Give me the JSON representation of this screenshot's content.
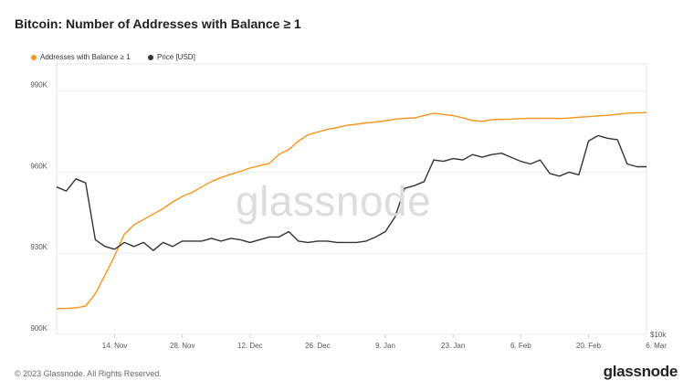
{
  "title": "Bitcoin: Number of Addresses with Balance ≥ 1",
  "footer": {
    "copyright": "© 2023 Glassnode. All Rights Reserved.",
    "logo": "glassnode"
  },
  "watermark": "glassnode",
  "colors": {
    "series_addresses": "#f7931a",
    "series_price": "#333333",
    "grid": "#eeeeee"
  },
  "chart_data": {
    "type": "line",
    "x_ticks": [
      "14. Nov",
      "28. Nov",
      "12. Dec",
      "26. Dec",
      "9. Jan",
      "23. Jan",
      "6. Feb",
      "20. Feb",
      "6. Mar"
    ],
    "y_left": {
      "ticks": [
        "900K",
        "930K",
        "960K",
        "990K"
      ],
      "tick_values": [
        900000,
        930000,
        960000,
        990000
      ],
      "range": [
        900000,
        1000000
      ]
    },
    "y_right": {
      "label": "$10k",
      "range": [
        10000,
        30000
      ]
    },
    "legend": {
      "position": "top-left"
    },
    "series": [
      {
        "name": "Addresses with Balance ≥ 1",
        "axis": "left",
        "x": [
          0,
          2,
          4,
          6,
          8,
          10,
          12,
          14,
          16,
          18,
          20,
          22,
          24,
          26,
          28,
          30,
          32,
          34,
          36,
          38,
          40,
          42,
          44,
          46,
          48,
          50,
          52,
          54,
          56,
          58,
          60,
          62,
          64,
          66,
          68,
          70,
          72,
          74,
          76,
          78,
          80,
          82,
          84,
          86,
          88,
          90,
          92,
          94,
          96,
          98,
          100,
          102,
          104,
          106,
          108,
          110,
          112,
          114,
          116,
          118,
          120,
          122
        ],
        "values": [
          909500,
          909600,
          909800,
          910500,
          915000,
          922000,
          929000,
          937000,
          940500,
          942500,
          944500,
          946500,
          949000,
          951000,
          952500,
          954500,
          956500,
          958000,
          959200,
          960300,
          961500,
          962400,
          963200,
          966600,
          968300,
          971500,
          973800,
          974800,
          975800,
          976500,
          977300,
          977700,
          978200,
          978500,
          979000,
          979600,
          979900,
          980000,
          980900,
          981800,
          981300,
          980900,
          980100,
          979100,
          978800,
          979400,
          979500,
          979600,
          979800,
          979900,
          979900,
          979900,
          979800,
          980000,
          980300,
          980500,
          980800,
          981000,
          981400,
          981800,
          981900,
          982000
        ]
      },
      {
        "name": "Price [USD]",
        "axis": "right",
        "x": [
          0,
          2,
          4,
          6,
          8,
          10,
          12,
          14,
          16,
          18,
          20,
          22,
          24,
          26,
          28,
          30,
          32,
          34,
          36,
          38,
          40,
          42,
          44,
          46,
          48,
          50,
          52,
          54,
          56,
          58,
          60,
          62,
          64,
          66,
          68,
          70,
          72,
          74,
          76,
          78,
          80,
          82,
          84,
          86,
          88,
          90,
          92,
          94,
          96,
          98,
          100,
          102,
          104,
          106,
          108,
          110,
          112,
          114,
          116,
          118,
          120,
          122
        ],
        "values": [
          20900,
          20600,
          21500,
          21200,
          17000,
          16500,
          16300,
          16800,
          16500,
          16800,
          16200,
          16800,
          16500,
          16900,
          16900,
          16900,
          17100,
          16900,
          17100,
          17000,
          16800,
          17000,
          17200,
          17200,
          17600,
          16900,
          16800,
          16900,
          16900,
          16800,
          16800,
          16800,
          16900,
          17200,
          17600,
          18700,
          20800,
          21000,
          21300,
          22900,
          22800,
          23000,
          22900,
          23300,
          23100,
          23300,
          23400,
          23100,
          22800,
          22600,
          22900,
          21900,
          21700,
          22000,
          21800,
          24300,
          24700,
          24500,
          24400,
          22600,
          22400,
          22400
        ]
      }
    ]
  }
}
